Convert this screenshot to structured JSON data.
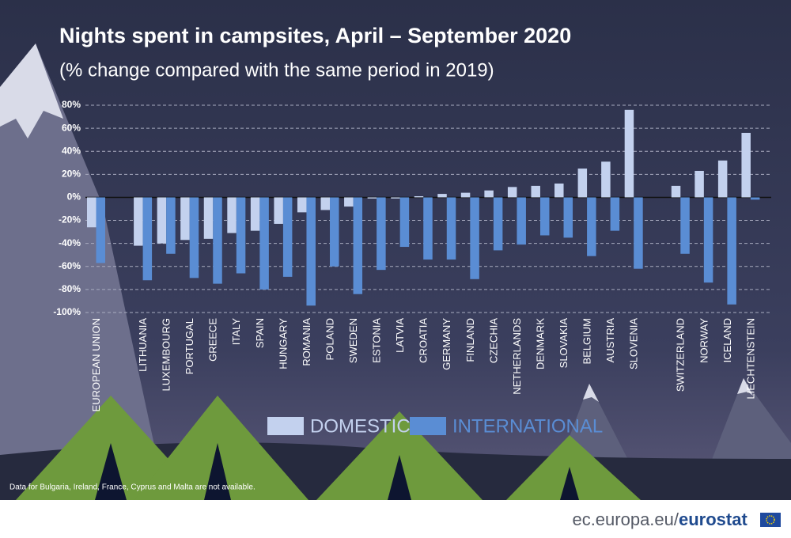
{
  "chart_data": {
    "type": "bar",
    "title": "Nights spent in campsites, April – September 2020",
    "subtitle": "(% change compared with the same period in 2019)",
    "categories": [
      "EUROPEAN UNION",
      null,
      "LITHUANIA",
      "LUXEMBOURG",
      "PORTUGAL",
      "GREECE",
      "ITALY",
      "SPAIN",
      "HUNGARY",
      "ROMANIA",
      "POLAND",
      "SWEDEN",
      "ESTONIA",
      "LATVIA",
      "CROATIA",
      "GERMANY",
      "FINLAND",
      "CZECHIA",
      "NETHERLANDS",
      "DENMARK",
      "SLOVAKIA",
      "BELGIUM",
      "AUSTRIA",
      "SLOVENIA",
      null,
      "SWITZERLAND",
      "NORWAY",
      "ICELAND",
      "LIECHTENSTEIN"
    ],
    "series": [
      {
        "name": "DOMESTIC",
        "color": "#c3d1ee",
        "values": [
          -26,
          null,
          -42,
          -40,
          -37,
          -36,
          -31,
          -29,
          -23,
          -13,
          -11,
          -8,
          -1,
          -1,
          1,
          3,
          4,
          6,
          9,
          10,
          12,
          25,
          31,
          76,
          null,
          10,
          23,
          32,
          56
        ]
      },
      {
        "name": "INTERNATIONAL",
        "color": "#5a8dd4",
        "values": [
          -57,
          null,
          -72,
          -49,
          -70,
          -75,
          -66,
          -80,
          -69,
          -94,
          -60,
          -84,
          -63,
          -43,
          -54,
          -54,
          -71,
          -46,
          -41,
          -33,
          -35,
          -51,
          -29,
          -62,
          null,
          -49,
          -74,
          -93,
          -2
        ]
      }
    ],
    "ylim": [
      -100,
      80
    ],
    "yticks": [
      {
        "value": -100,
        "label": "-100%"
      },
      {
        "value": -80,
        "label": "-80%"
      },
      {
        "value": -60,
        "label": "-60%"
      },
      {
        "value": -40,
        "label": "-40%"
      },
      {
        "value": -20,
        "label": "-20%"
      },
      {
        "value": 0,
        "label": "0%"
      },
      {
        "value": 20,
        "label": "20%"
      },
      {
        "value": 40,
        "label": "40%"
      },
      {
        "value": 60,
        "label": "60%"
      },
      {
        "value": 80,
        "label": "80%"
      }
    ],
    "grid": true,
    "note": "Data for Bulgaria, Ireland, France, Cyprus and Malta are not available.",
    "source": "ec.europa.eu/",
    "brand": "eurostat"
  }
}
